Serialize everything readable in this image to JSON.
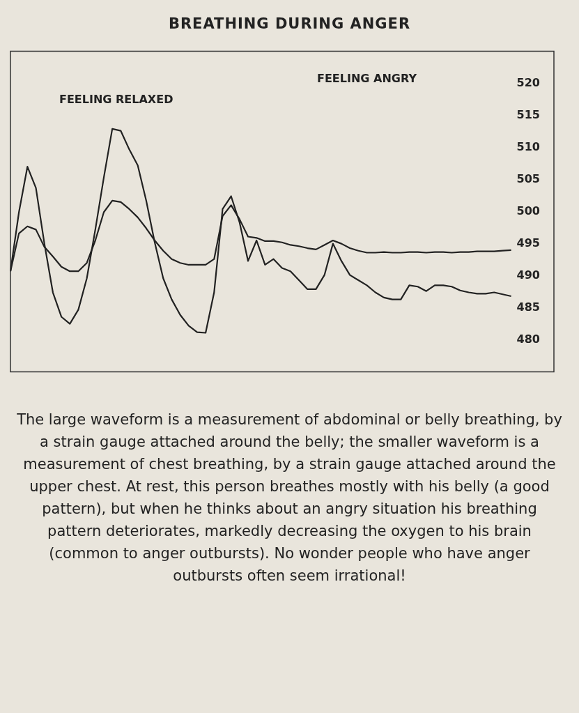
{
  "chart_data": {
    "type": "line",
    "title": "BREATHING DURING ANGER",
    "categories": [
      null,
      null,
      null,
      null,
      null,
      null,
      null,
      null,
      null,
      null,
      null,
      null,
      null,
      null,
      null,
      null,
      null,
      null,
      null,
      null,
      null,
      null,
      null,
      null,
      null,
      null,
      null,
      null,
      null,
      null,
      null,
      null,
      null,
      null,
      null,
      null,
      null,
      null,
      null,
      null,
      null,
      null,
      null,
      null,
      null,
      null,
      null,
      null,
      null,
      null,
      null,
      null,
      null,
      null,
      null,
      null,
      null,
      null,
      null,
      null
    ],
    "series": [
      {
        "color": "#222222",
        "values": [
          490.7,
          499.9,
          507.0,
          503.7,
          495.0,
          487.4,
          483.6,
          482.5,
          484.7,
          489.6,
          497.2,
          505.3,
          512.9,
          512.6,
          509.7,
          507.2,
          501.7,
          495.2,
          489.6,
          486.3,
          483.9,
          482.2,
          481.2,
          481.1,
          487.4,
          500.4,
          502.4,
          498.3,
          492.3,
          495.5,
          491.7,
          492.6,
          491.2,
          490.7,
          489.3,
          487.9,
          487.9,
          490.1,
          495.0,
          492.3,
          490.1,
          489.3,
          488.5,
          487.4,
          486.6,
          486.3,
          486.3,
          488.5,
          488.3,
          487.6,
          488.5,
          488.5,
          488.3,
          487.7,
          487.4,
          487.2,
          487.2,
          487.4,
          487.1,
          486.8
        ]
      },
      {
        "color": "#222222",
        "values": [
          490.7,
          496.6,
          497.7,
          497.2,
          494.5,
          493.0,
          491.4,
          490.7,
          490.7,
          492.0,
          495.5,
          499.9,
          501.7,
          501.5,
          500.4,
          499.1,
          497.4,
          495.5,
          493.9,
          492.6,
          492.0,
          491.7,
          491.7,
          491.7,
          492.6,
          499.3,
          501.0,
          498.8,
          496.1,
          495.9,
          495.4,
          495.4,
          495.2,
          494.8,
          494.6,
          494.3,
          494.1,
          494.8,
          495.5,
          495.0,
          494.3,
          493.9,
          493.6,
          493.6,
          493.7,
          493.6,
          493.6,
          493.7,
          493.7,
          493.6,
          493.7,
          493.7,
          493.6,
          493.7,
          493.7,
          493.8,
          493.8,
          493.8,
          493.9,
          494.0
        ]
      }
    ],
    "ylim": [
      475,
      525
    ],
    "yticks": [
      480,
      485,
      490,
      495,
      500,
      505,
      510,
      515,
      520
    ],
    "grid": false,
    "legend": false,
    "marker": "none",
    "line_style": "solid",
    "annotations": [
      "FEELING RELAXED",
      "FEELING ANGRY",
      "The large waveform is a measurement of abdominal or belly breathing, by a strain gauge attached around the belly; the smaller waveform is a measurement of chest breathing, by a strain gauge attached around the upper chest. At rest, this person breathes mostly with his belly (a good pattern), but when he thinks about an angry situation his breathing pattern deteriorates, markedly decreasing the oxygen to his brain (common to anger outbursts). No wonder people who have anger outbursts often seem irrational!"
    ]
  }
}
